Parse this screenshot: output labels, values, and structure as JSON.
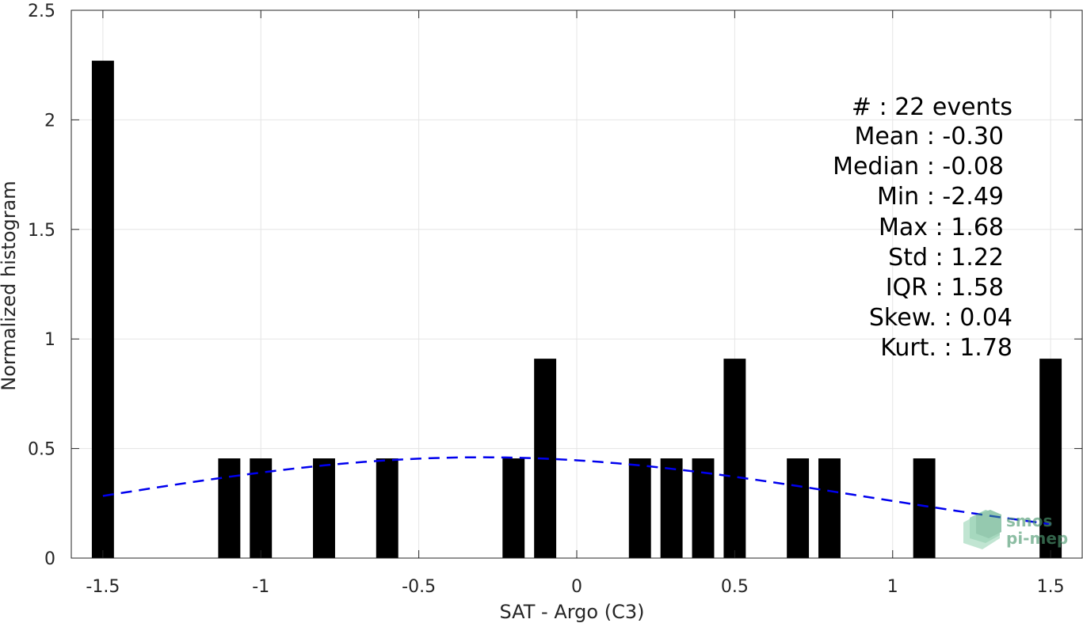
{
  "chart_data": {
    "type": "bar",
    "xlabel": "SAT - Argo (C3)",
    "ylabel": "Normalized histogram",
    "xlim": [
      -1.6,
      1.6
    ],
    "ylim": [
      0,
      2.5
    ],
    "xticks": [
      -1.5,
      -1,
      -0.5,
      0,
      0.5,
      1,
      1.5
    ],
    "xtick_labels": [
      "-1.5",
      "-1",
      "-0.5",
      "0",
      "0.5",
      "1",
      "1.5"
    ],
    "yticks": [
      0,
      0.5,
      1,
      1.5,
      2,
      2.5
    ],
    "ytick_labels": [
      "0",
      "0.5",
      "1",
      "1.5",
      "2",
      "2.5"
    ],
    "grid": true,
    "bar_color": "#000000",
    "bar_width": 0.07,
    "bars": [
      {
        "x": -1.5,
        "y": 2.27
      },
      {
        "x": -1.1,
        "y": 0.455
      },
      {
        "x": -1.0,
        "y": 0.455
      },
      {
        "x": -0.8,
        "y": 0.455
      },
      {
        "x": -0.6,
        "y": 0.455
      },
      {
        "x": -0.2,
        "y": 0.455
      },
      {
        "x": -0.1,
        "y": 0.91
      },
      {
        "x": 0.2,
        "y": 0.455
      },
      {
        "x": 0.3,
        "y": 0.455
      },
      {
        "x": 0.4,
        "y": 0.455
      },
      {
        "x": 0.5,
        "y": 0.91
      },
      {
        "x": 0.7,
        "y": 0.455
      },
      {
        "x": 0.8,
        "y": 0.455
      },
      {
        "x": 1.1,
        "y": 0.455
      },
      {
        "x": 1.5,
        "y": 0.91
      }
    ],
    "fit_curve": {
      "style": "dashed",
      "color": "#0000ee",
      "mean": -0.3,
      "std": 1.22,
      "peak": 0.46,
      "x_range": [
        -1.5,
        1.5
      ]
    },
    "annotations": [
      "#  : 22 events",
      "Mean : -0.30",
      "Median : -0.08",
      "Min : -2.49",
      "Max : 1.68",
      "Std : 1.22",
      "IQR : 1.58",
      "Skew. : 0.04",
      "Kurt. : 1.78"
    ]
  },
  "logo": {
    "line1": "smos",
    "line2": "pi-mep",
    "color": "#4f9a72"
  }
}
